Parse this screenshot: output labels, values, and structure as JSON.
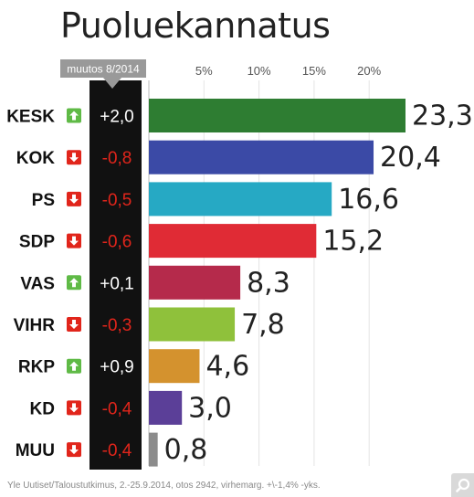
{
  "title": "Puoluekannatus",
  "change_header": "muutos 8/2014",
  "source": "Yle Uutiset/Taloustutkimus, 2.-25.9.2014, otos 2942, virhemarg. +\\-1,4% -yks.",
  "colors": {
    "up": "#5fba46",
    "down": "#e1251b",
    "change_bg": "#111111",
    "header_bg": "#999999"
  },
  "chart_data": {
    "type": "bar",
    "orientation": "horizontal",
    "unit": "%",
    "xlim": [
      0,
      23.3
    ],
    "xticks": [
      5,
      10,
      15,
      20
    ],
    "xtick_labels": [
      "5%",
      "10%",
      "15%",
      "20%"
    ],
    "grid": true,
    "categories": [
      "KESK",
      "KOK",
      "PS",
      "SDP",
      "VAS",
      "VIHR",
      "RKP",
      "KD",
      "MUU"
    ],
    "values": [
      23.3,
      20.4,
      16.6,
      15.2,
      8.3,
      7.8,
      4.6,
      3.0,
      0.8
    ],
    "value_labels": [
      "23,3",
      "20,4",
      "16,6",
      "15,2",
      "8,3",
      "7,8",
      "4,6",
      "3,0",
      "0,8"
    ],
    "changes": [
      "+2,0",
      "-0,8",
      "-0,5",
      "-0,6",
      "+0,1",
      "-0,3",
      "+0,9",
      "-0,4",
      "-0,4"
    ],
    "directions": [
      "up",
      "down",
      "down",
      "down",
      "up",
      "down",
      "up",
      "down",
      "down"
    ],
    "bar_colors": [
      "#2e7d32",
      "#3b4aa6",
      "#26a9c4",
      "#e02b35",
      "#b52a4b",
      "#8fc13b",
      "#d4922e",
      "#5b3f98",
      "#8c8c8c"
    ]
  }
}
